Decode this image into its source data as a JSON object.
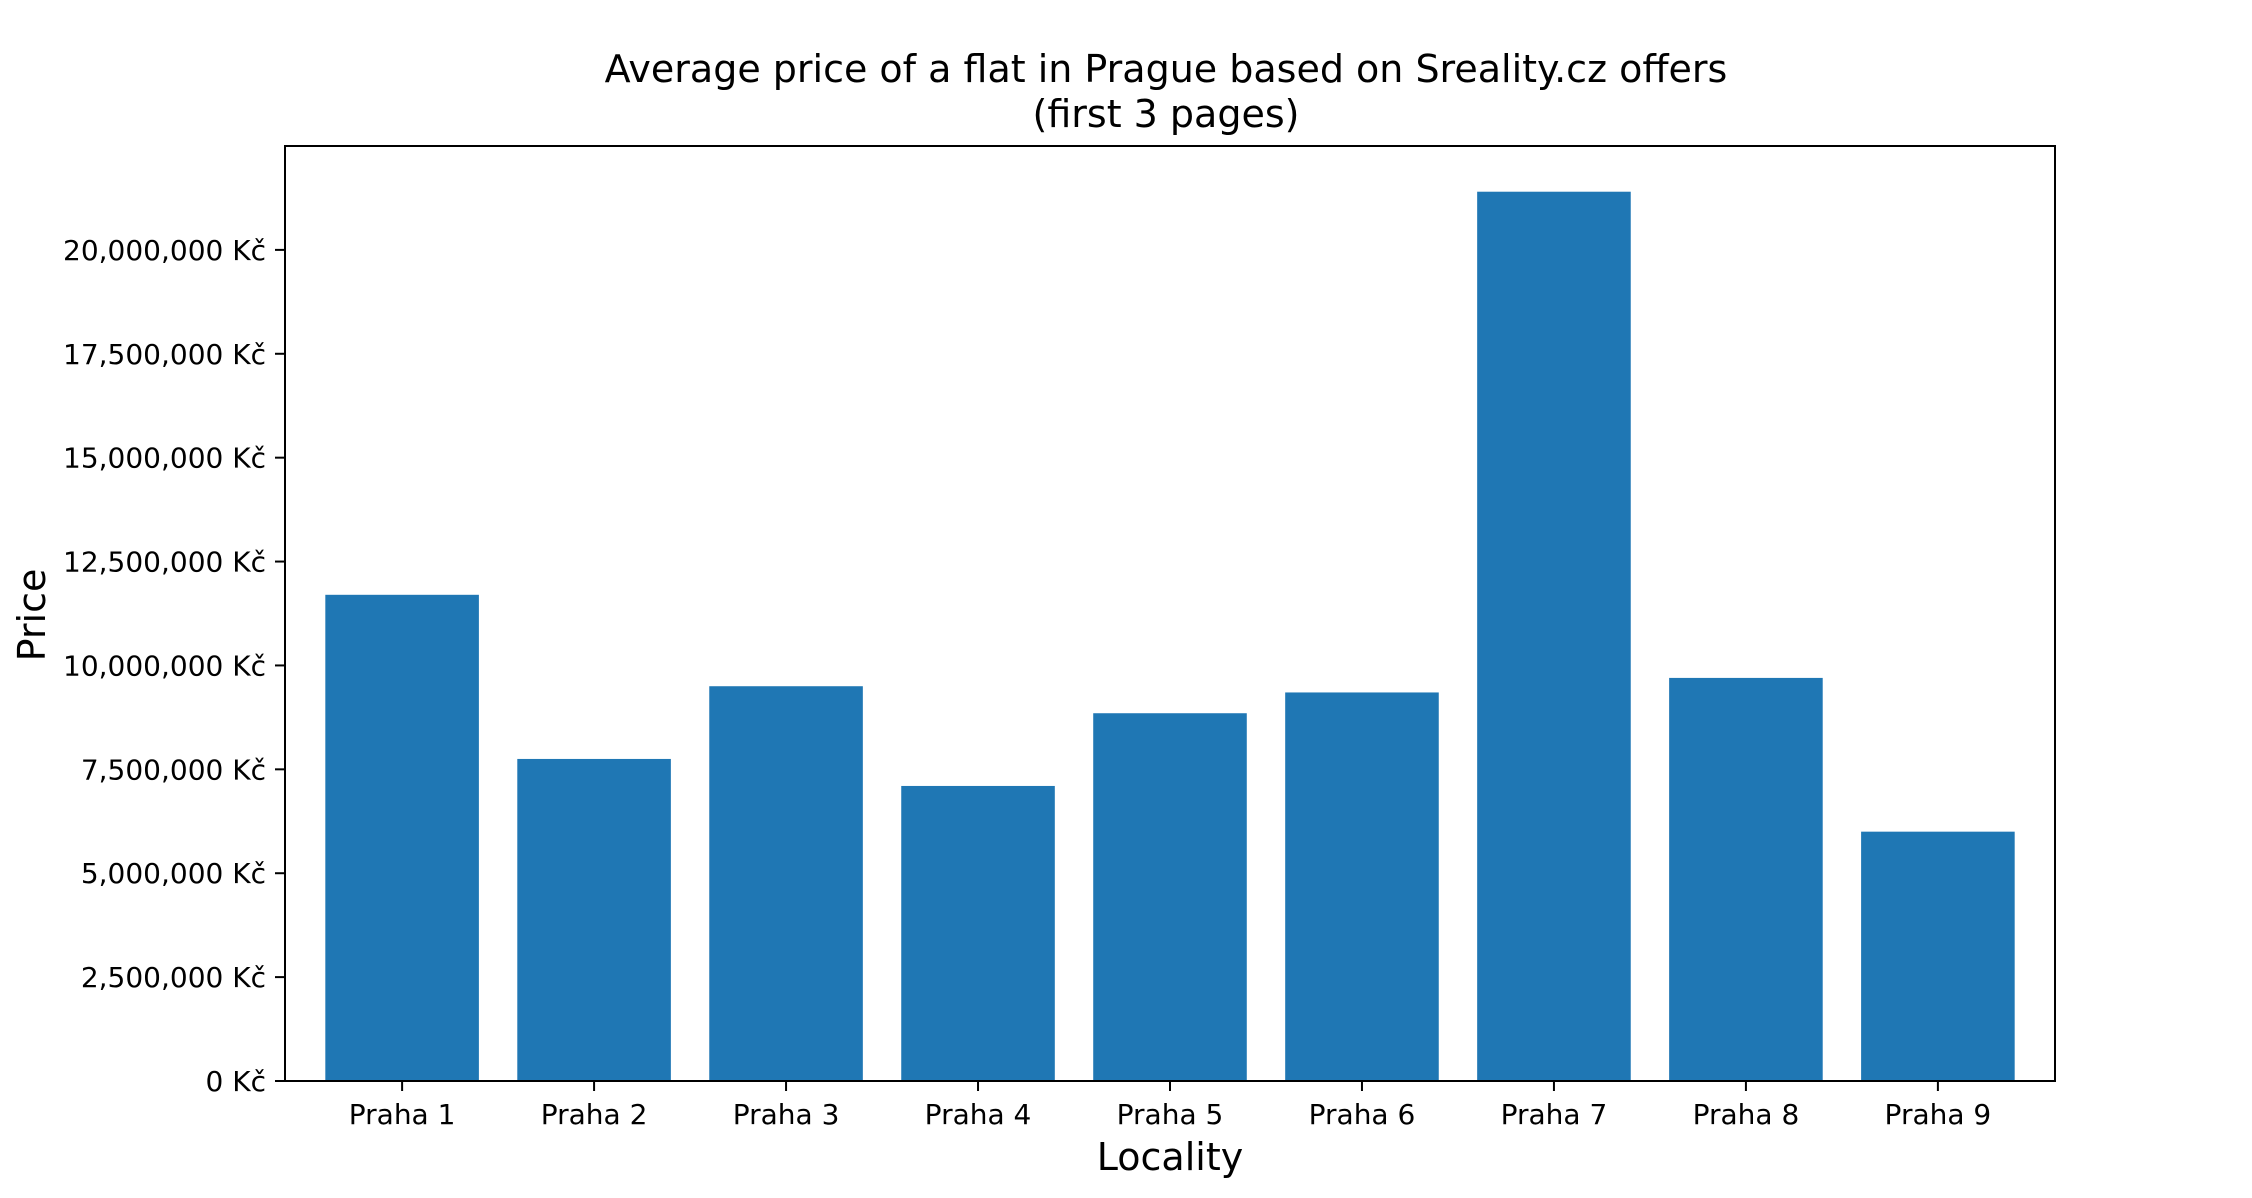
{
  "chart_data": {
    "type": "bar",
    "title_line1": "Average price of a flat in Prague based on Sreality.cz offers",
    "title_line2": "(first 3 pages)",
    "xlabel": "Locality",
    "ylabel": "Price",
    "categories": [
      "Praha 1",
      "Praha 2",
      "Praha 3",
      "Praha 4",
      "Praha 5",
      "Praha 6",
      "Praha 7",
      "Praha 8",
      "Praha 9"
    ],
    "values": [
      11700000,
      7750000,
      9500000,
      7100000,
      8850000,
      9350000,
      21400000,
      9700000,
      6000000
    ],
    "ylim": [
      0,
      22500000
    ],
    "yticks": [
      0,
      2500000,
      5000000,
      7500000,
      10000000,
      12500000,
      15000000,
      17500000,
      20000000
    ],
    "ytick_labels": [
      "0 Kč",
      "2,500,000 Kč",
      "5,000,000 Kč",
      "7,500,000 Kč",
      "10,000,000 Kč",
      "12,500,000 Kč",
      "15,000,000 Kč",
      "17,500,000 Kč",
      "20,000,000 Kč"
    ],
    "bar_color": "#1f77b4",
    "grid": false,
    "legend": false
  }
}
